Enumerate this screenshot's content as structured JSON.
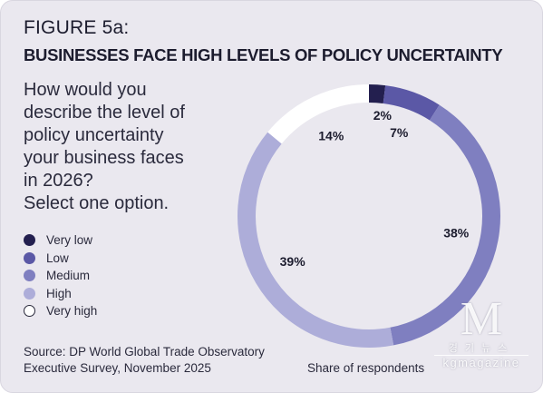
{
  "figure": {
    "label": "FIGURE 5a:",
    "title": "BUSINESSES FACE HIGH LEVELS OF POLICY UNCERTAINTY",
    "question": "How would you\ndescribe the level of\npolicy uncertainty\nyour business faces\nin 2026?\nSelect one option.",
    "source": "Source: DP World Global Trade Observatory\nExecutive Survey, November 2025",
    "note": "Share of respondents"
  },
  "chart_data": {
    "type": "pie",
    "categories": [
      "Very low",
      "Low",
      "Medium",
      "High",
      "Very high"
    ],
    "values": [
      2,
      7,
      38,
      39,
      14
    ],
    "labels": [
      "2%",
      "7%",
      "38%",
      "39%",
      "14%"
    ],
    "colors": [
      "#231f4f",
      "#5b58a6",
      "#7f7fc0",
      "#adadd9",
      "#ffffff"
    ],
    "unit": "%",
    "legend_position": "left"
  },
  "watermark": {
    "mark": "M",
    "korean": "경기뉴스",
    "text": "kgmagazine"
  }
}
